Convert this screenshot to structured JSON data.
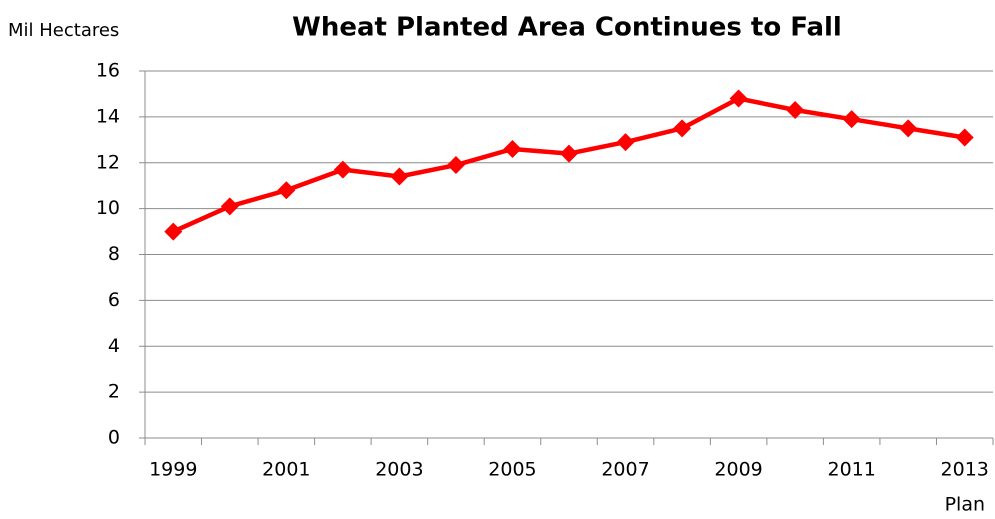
{
  "chart_data": {
    "type": "line",
    "title": "Wheat Planted Area Continues to Fall",
    "y_label": "Mil Hectares",
    "categories": [
      "1999",
      null,
      "2001",
      null,
      "2003",
      null,
      "2005",
      null,
      "2007",
      null,
      "2009",
      null,
      "2011",
      null,
      "2013"
    ],
    "annotations": [
      "Plan"
    ],
    "series": [
      {
        "name": "Wheat planted area",
        "color": "#ff0000",
        "values": [
          9.0,
          10.1,
          10.8,
          11.7,
          11.4,
          11.9,
          12.6,
          12.4,
          12.9,
          13.5,
          14.8,
          14.3,
          13.9,
          13.5,
          13.1
        ]
      }
    ],
    "ylim": [
      0,
      16
    ],
    "yticks": [
      0,
      2,
      4,
      6,
      8,
      10,
      12,
      14,
      16
    ],
    "grid": true,
    "legend": false
  }
}
